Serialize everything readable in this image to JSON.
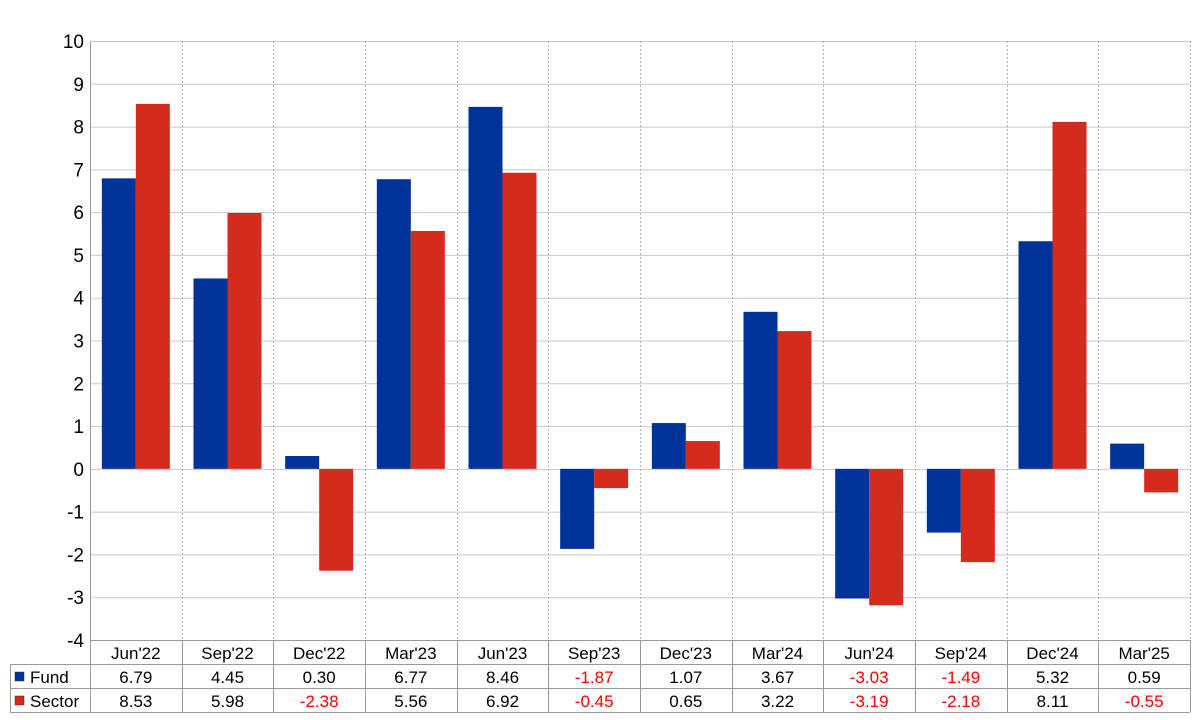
{
  "chart_data": {
    "type": "bar",
    "categories": [
      "Jun'22",
      "Sep'22",
      "Dec'22",
      "Mar'23",
      "Jun'23",
      "Sep'23",
      "Dec'23",
      "Mar'24",
      "Jun'24",
      "Sep'24",
      "Dec'24",
      "Mar'25"
    ],
    "series": [
      {
        "name": "Fund",
        "color": "#003399",
        "values": [
          6.79,
          4.45,
          0.3,
          6.77,
          8.46,
          -1.87,
          1.07,
          3.67,
          -3.03,
          -1.49,
          5.32,
          0.59
        ],
        "labels": [
          "6.79",
          "4.45",
          "0.30",
          "6.77",
          "8.46",
          "-1.87",
          "1.07",
          "3.67",
          "-3.03",
          "-1.49",
          "5.32",
          "0.59"
        ]
      },
      {
        "name": "Sector",
        "color": "#d52b1e",
        "values": [
          8.53,
          5.98,
          -2.38,
          5.56,
          6.92,
          -0.45,
          0.65,
          3.22,
          -3.19,
          -2.18,
          8.11,
          -0.55
        ],
        "labels": [
          "8.53",
          "5.98",
          "-2.38",
          "5.56",
          "6.92",
          "-0.45",
          "0.65",
          "3.22",
          "-3.19",
          "-2.18",
          "8.11",
          "-0.55"
        ]
      }
    ],
    "title": "",
    "xlabel": "",
    "ylabel": "",
    "ylim": [
      -4,
      10
    ],
    "yticks": [
      "10",
      "9",
      "8",
      "7",
      "6",
      "5",
      "4",
      "3",
      "2",
      "1",
      "0",
      "-1",
      "-2",
      "-3",
      "-4"
    ],
    "grid": true,
    "legend": "table-bottom",
    "negative_color": "#ff0000"
  }
}
